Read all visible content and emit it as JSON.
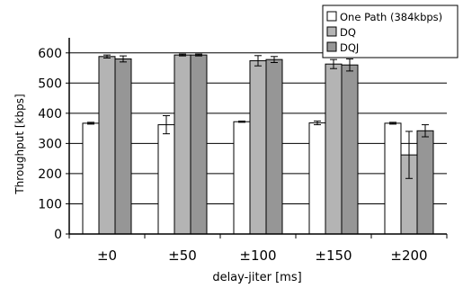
{
  "chart_data": {
    "type": "bar",
    "categories": [
      "±0",
      "±50",
      "±100",
      "±150",
      "±200"
    ],
    "series": [
      {
        "name": "One Path (384kbps)",
        "color": "#ffffff",
        "values": [
          367,
          362,
          372,
          368,
          367
        ],
        "errors": [
          3,
          30,
          2,
          6,
          3
        ]
      },
      {
        "name": "DQ",
        "color": "#b4b4b4",
        "values": [
          588,
          593,
          574,
          563,
          262
        ],
        "errors": [
          5,
          3,
          17,
          15,
          78
        ]
      },
      {
        "name": "DQJ",
        "color": "#969696",
        "values": [
          580,
          593,
          578,
          560,
          342
        ],
        "errors": [
          10,
          3,
          10,
          20,
          20
        ]
      }
    ],
    "xlabel": "delay-jiter [ms]",
    "ylabel": "Throughput [kbps]",
    "ylim": [
      0,
      650
    ],
    "yticks": [
      0,
      100,
      200,
      300,
      400,
      500,
      600
    ],
    "grid": true,
    "legend_position": "top-right"
  }
}
